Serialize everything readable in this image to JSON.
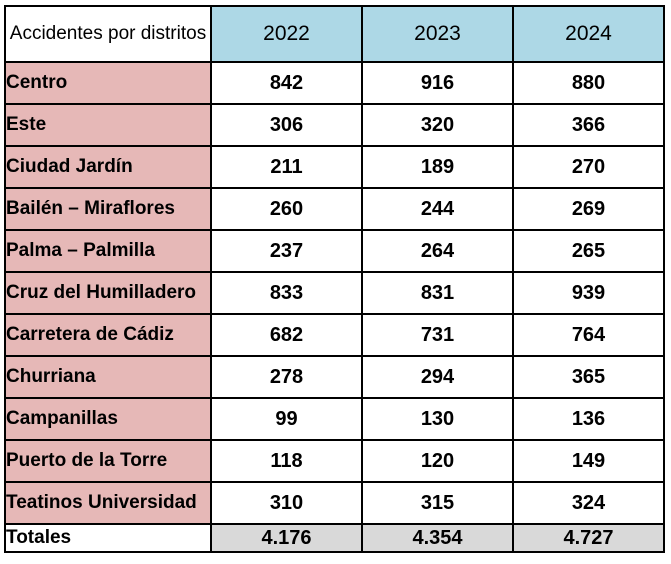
{
  "table": {
    "corner_header": "Accidentes por distritos",
    "columns": [
      "2022",
      "2023",
      "2024"
    ],
    "rows": [
      {
        "district": "Centro",
        "values": [
          "842",
          "916",
          "880"
        ]
      },
      {
        "district": "Este",
        "values": [
          "306",
          "320",
          "366"
        ]
      },
      {
        "district": "Ciudad Jardín",
        "values": [
          "211",
          "189",
          "270"
        ]
      },
      {
        "district": "Bailén – Miraflores",
        "values": [
          "260",
          "244",
          "269"
        ]
      },
      {
        "district": "Palma – Palmilla",
        "values": [
          "237",
          "264",
          "265"
        ]
      },
      {
        "district": "Cruz del Humilladero",
        "values": [
          "833",
          "831",
          "939"
        ]
      },
      {
        "district": "Carretera de Cádiz",
        "values": [
          "682",
          "731",
          "764"
        ]
      },
      {
        "district": "Churriana",
        "values": [
          "278",
          "294",
          "365"
        ]
      },
      {
        "district": "Campanillas",
        "values": [
          "99",
          "130",
          "136"
        ]
      },
      {
        "district": "Puerto de la Torre",
        "values": [
          "118",
          "120",
          "149"
        ]
      },
      {
        "district": "Teatinos Universidad",
        "values": [
          "310",
          "315",
          "324"
        ]
      }
    ],
    "totals": {
      "label": "Totales",
      "values": [
        "4.176",
        "4.354",
        "4.727"
      ]
    }
  },
  "colors": {
    "header_fill": "#add8e6",
    "district_fill": "#e6b8b7",
    "total_fill": "#d9d9d9",
    "border": "#000000"
  }
}
